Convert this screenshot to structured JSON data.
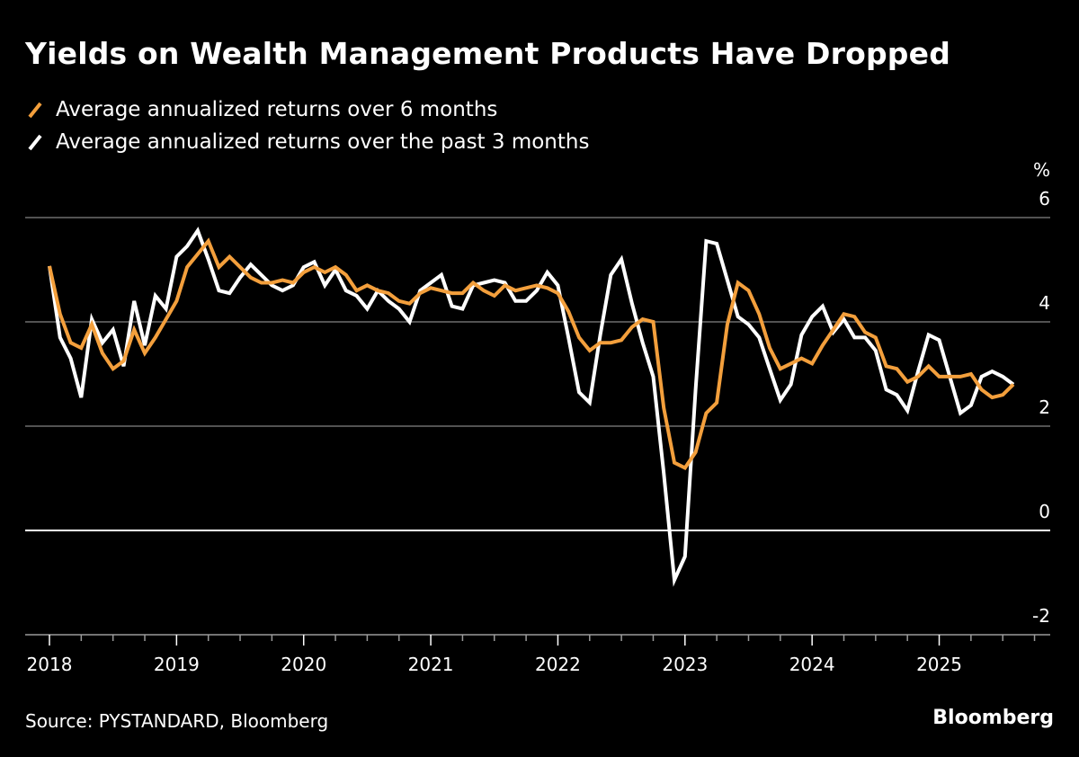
{
  "header": {
    "title": "Yields on Wealth Management Products Have Dropped"
  },
  "footer": {
    "source": "Source: PYSTANDARD, Bloomberg",
    "brand": "Bloomberg"
  },
  "colors": {
    "background": "#000000",
    "series_6m": "#F39F3C",
    "series_3m": "#FFFFFF",
    "grid": "#6E6E6E",
    "zero_line": "#FFFFFF"
  },
  "chart_data": {
    "type": "line",
    "title": "Yields on Wealth Management Products Have Dropped",
    "xlabel": "",
    "ylabel": "%",
    "y_unit_label": "%",
    "ylim": [
      -2,
      6
    ],
    "yticks": [
      6,
      4,
      2,
      0,
      -2
    ],
    "x_start": "2018-01",
    "x_frequency": "monthly",
    "xticks": [
      "2018",
      "2019",
      "2020",
      "2021",
      "2022",
      "2023",
      "2024",
      "2025"
    ],
    "xlim": [
      "2018-01",
      "2025-10"
    ],
    "grid": true,
    "legend_position": "top-left",
    "series": [
      {
        "name": "Average annualized returns over 6 months",
        "color": "#F39F3C",
        "values": [
          5.07,
          4.15,
          3.6,
          3.5,
          3.95,
          3.4,
          3.1,
          3.25,
          3.85,
          3.4,
          3.7,
          4.05,
          4.4,
          5.05,
          5.3,
          5.55,
          5.05,
          5.25,
          5.05,
          4.85,
          4.75,
          4.75,
          4.8,
          4.75,
          4.95,
          5.05,
          4.95,
          5.05,
          4.9,
          4.6,
          4.7,
          4.6,
          4.55,
          4.4,
          4.35,
          4.55,
          4.65,
          4.6,
          4.55,
          4.55,
          4.75,
          4.6,
          4.5,
          4.7,
          4.6,
          4.65,
          4.7,
          4.65,
          4.55,
          4.2,
          3.7,
          3.45,
          3.6,
          3.6,
          3.65,
          3.9,
          4.05,
          4.0,
          2.35,
          1.3,
          1.2,
          1.5,
          2.25,
          2.45,
          3.95,
          4.75,
          4.6,
          4.15,
          3.5,
          3.1,
          3.2,
          3.3,
          3.2,
          3.55,
          3.85,
          4.15,
          4.1,
          3.8,
          3.7,
          3.15,
          3.1,
          2.85,
          2.95,
          3.15,
          2.95,
          2.95,
          2.95,
          3.0,
          2.7,
          2.55,
          2.6,
          2.8
        ]
      },
      {
        "name": "Average annualized returns over the past 3 months",
        "color": "#FFFFFF",
        "values": [
          5.07,
          3.7,
          3.3,
          2.55,
          4.05,
          3.6,
          3.85,
          3.15,
          4.4,
          3.55,
          4.5,
          4.25,
          5.25,
          5.45,
          5.75,
          5.2,
          4.6,
          4.55,
          4.85,
          5.1,
          4.9,
          4.7,
          4.6,
          4.7,
          5.05,
          5.15,
          4.7,
          5.0,
          4.6,
          4.5,
          4.25,
          4.6,
          4.4,
          4.25,
          4.0,
          4.6,
          4.75,
          4.9,
          4.3,
          4.25,
          4.7,
          4.75,
          4.8,
          4.75,
          4.4,
          4.4,
          4.6,
          4.95,
          4.7,
          3.7,
          2.65,
          2.45,
          3.75,
          4.9,
          5.2,
          4.35,
          3.6,
          2.95,
          1.1,
          -0.95,
          -0.5,
          2.7,
          5.55,
          5.5,
          4.8,
          4.1,
          3.95,
          3.7,
          3.1,
          2.5,
          2.8,
          3.75,
          4.1,
          4.3,
          3.8,
          4.05,
          3.7,
          3.7,
          3.45,
          2.7,
          2.6,
          2.3,
          3.05,
          3.75,
          3.65,
          2.95,
          2.25,
          2.4,
          2.95,
          3.05,
          2.95,
          2.8
        ]
      }
    ]
  }
}
